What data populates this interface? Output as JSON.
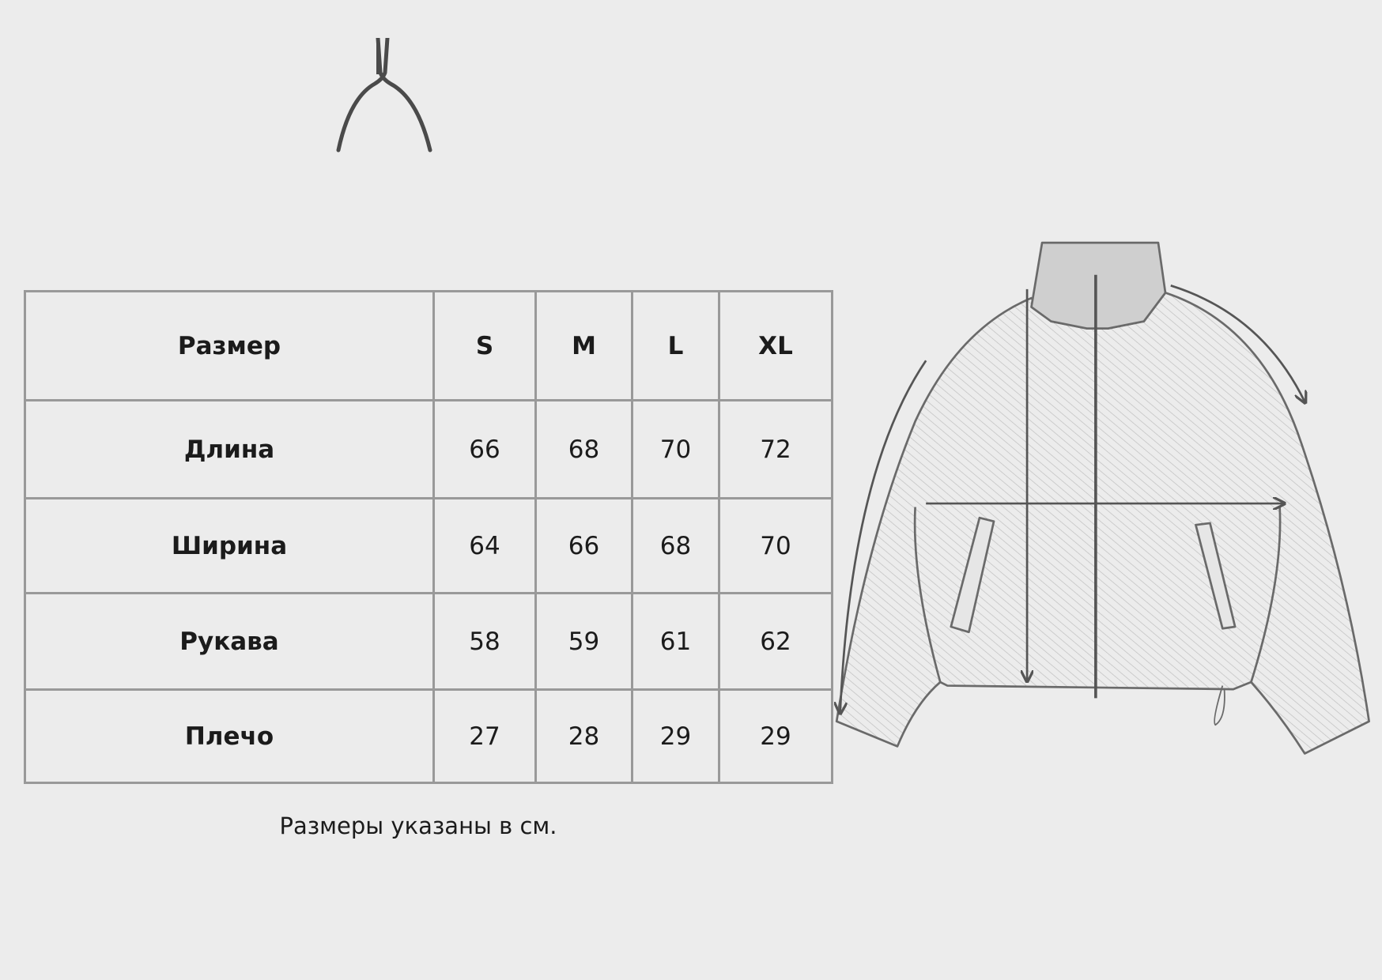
{
  "logo": {
    "icon": "wishbone-logo",
    "color": "#4a4a4a"
  },
  "table": {
    "header": {
      "label": "Размер",
      "sizes": [
        "S",
        "M",
        "L",
        "XL"
      ]
    },
    "rows": [
      {
        "label": "Длина",
        "values": [
          "66",
          "68",
          "70",
          "72"
        ]
      },
      {
        "label": "Ширина",
        "values": [
          "64",
          "66",
          "68",
          "70"
        ]
      },
      {
        "label": "Рукава",
        "values": [
          "58",
          "59",
          "61",
          "62"
        ]
      },
      {
        "label": "Плечо",
        "values": [
          "27",
          "28",
          "29",
          "29"
        ]
      }
    ]
  },
  "note": "Размеры указаны в см.",
  "illustration": {
    "icon": "jacket-sketch-with-measurement-arrows",
    "line_color": "#555555",
    "background": "#ececec"
  }
}
